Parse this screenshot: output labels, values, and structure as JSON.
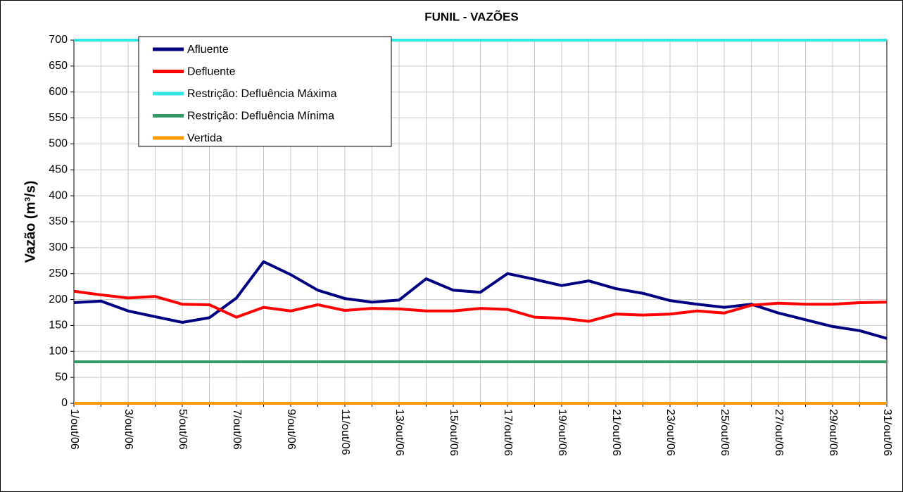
{
  "chart_data": {
    "type": "line",
    "title": "FUNIL - VAZÕES",
    "y_label": "Vazão (m³/s)",
    "categories": [
      "1/out/06",
      null,
      "3/out/06",
      null,
      "5/out/06",
      null,
      "7/out/06",
      null,
      "9/out/06",
      null,
      "11/out/06",
      null,
      "13/out/06",
      null,
      "15/out/06",
      null,
      "17/out/06",
      null,
      "19/out/06",
      null,
      "21/out/06",
      null,
      "23/out/06",
      null,
      "25/out/06",
      null,
      "27/out/06",
      null,
      "29/out/06",
      null,
      "31/out/06"
    ],
    "series": [
      {
        "name": "Afluente",
        "color": "#000080",
        "values": [
          194,
          197,
          178,
          167,
          156,
          165,
          203,
          273,
          248,
          218,
          202,
          195,
          199,
          240,
          218,
          214,
          250,
          239,
          227,
          236,
          221,
          212,
          198,
          191,
          185,
          191,
          174,
          161,
          148,
          140,
          125
        ]
      },
      {
        "name": "Defluente",
        "color": "#ff0000",
        "values": [
          216,
          209,
          203,
          206,
          191,
          190,
          166,
          185,
          178,
          190,
          179,
          183,
          182,
          178,
          178,
          183,
          181,
          166,
          164,
          158,
          172,
          170,
          172,
          178,
          174,
          189,
          193,
          191,
          191,
          194,
          195
        ]
      },
      {
        "name": "Restrição: Defluência Máxima",
        "color": "#33e6e6",
        "values": [
          700,
          700,
          700,
          700,
          700,
          700,
          700,
          700,
          700,
          700,
          700,
          700,
          700,
          700,
          700,
          700,
          700,
          700,
          700,
          700,
          700,
          700,
          700,
          700,
          700,
          700,
          700,
          700,
          700,
          700,
          700
        ]
      },
      {
        "name": "Restrição: Defluência Mínima",
        "color": "#339966",
        "values": [
          80,
          80,
          80,
          80,
          80,
          80,
          80,
          80,
          80,
          80,
          80,
          80,
          80,
          80,
          80,
          80,
          80,
          80,
          80,
          80,
          80,
          80,
          80,
          80,
          80,
          80,
          80,
          80,
          80,
          80,
          80
        ]
      },
      {
        "name": "Vertida",
        "color": "#ff9900",
        "values": [
          0,
          0,
          0,
          0,
          0,
          0,
          0,
          0,
          0,
          0,
          0,
          0,
          0,
          0,
          0,
          0,
          0,
          0,
          0,
          0,
          0,
          0,
          0,
          0,
          0,
          0,
          0,
          0,
          0,
          0,
          0
        ]
      }
    ],
    "ylim": [
      0,
      700
    ],
    "yticks": [
      0,
      50,
      100,
      150,
      200,
      250,
      300,
      350,
      400,
      450,
      500,
      550,
      600,
      650,
      700
    ],
    "grid": true,
    "legend": "upper left"
  }
}
